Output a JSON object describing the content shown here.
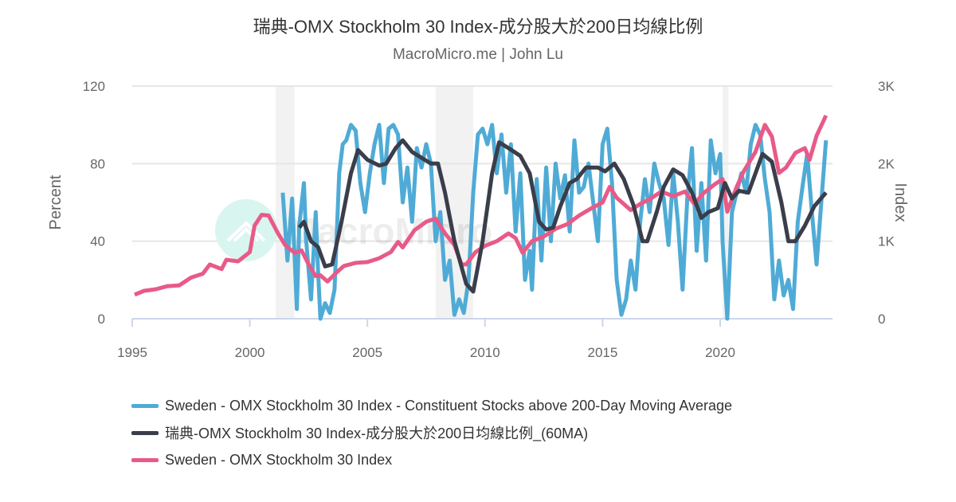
{
  "chart_data": {
    "type": "line",
    "title": "瑞典-OMX Stockholm 30 Index-成分股大於200日均線比例",
    "subtitle": "MacroMicro.me | John Lu",
    "watermark": "MacroMicro",
    "xlim": [
      1995,
      2024.8
    ],
    "x_ticks": [
      "1995",
      "2000",
      "2005",
      "2010",
      "2015",
      "2020"
    ],
    "y_left": {
      "label": "Percent",
      "range": [
        0,
        120
      ],
      "ticks": [
        "0",
        "40",
        "80",
        "120"
      ]
    },
    "y_right": {
      "label": "Index",
      "range": [
        0,
        3000
      ],
      "ticks": [
        "0",
        "1K",
        "2K",
        "3K"
      ]
    },
    "grid": true,
    "legend_placement": "bottom",
    "recession_bands": [
      [
        2001.1,
        2001.9
      ],
      [
        2007.9,
        2009.5
      ],
      [
        2020.1,
        2020.35
      ]
    ],
    "series": [
      {
        "name": "Sweden - OMX Stockholm 30 Index - Constituent Stocks above 200-Day Moving Average",
        "axis": "left",
        "color": "#4fabd6",
        "points": [
          [
            2001.4,
            65
          ],
          [
            2001.6,
            30
          ],
          [
            2001.8,
            62
          ],
          [
            2002.0,
            5
          ],
          [
            2002.1,
            48
          ],
          [
            2002.3,
            70
          ],
          [
            2002.4,
            40
          ],
          [
            2002.6,
            10
          ],
          [
            2002.8,
            55
          ],
          [
            2002.9,
            25
          ],
          [
            2003.0,
            0
          ],
          [
            2003.2,
            8
          ],
          [
            2003.4,
            3
          ],
          [
            2003.6,
            15
          ],
          [
            2003.8,
            75
          ],
          [
            2003.95,
            90
          ],
          [
            2004.1,
            92
          ],
          [
            2004.3,
            100
          ],
          [
            2004.5,
            97
          ],
          [
            2004.7,
            70
          ],
          [
            2004.9,
            55
          ],
          [
            2005.1,
            75
          ],
          [
            2005.3,
            90
          ],
          [
            2005.5,
            100
          ],
          [
            2005.7,
            70
          ],
          [
            2005.9,
            98
          ],
          [
            2006.1,
            100
          ],
          [
            2006.3,
            95
          ],
          [
            2006.5,
            60
          ],
          [
            2006.7,
            78
          ],
          [
            2006.9,
            50
          ],
          [
            2007.1,
            88
          ],
          [
            2007.3,
            78
          ],
          [
            2007.5,
            90
          ],
          [
            2007.7,
            80
          ],
          [
            2007.9,
            40
          ],
          [
            2008.1,
            55
          ],
          [
            2008.3,
            20
          ],
          [
            2008.5,
            30
          ],
          [
            2008.7,
            2
          ],
          [
            2008.9,
            10
          ],
          [
            2009.1,
            3
          ],
          [
            2009.3,
            20
          ],
          [
            2009.5,
            65
          ],
          [
            2009.7,
            95
          ],
          [
            2009.9,
            98
          ],
          [
            2010.1,
            90
          ],
          [
            2010.3,
            100
          ],
          [
            2010.5,
            75
          ],
          [
            2010.7,
            95
          ],
          [
            2010.9,
            65
          ],
          [
            2011.1,
            90
          ],
          [
            2011.3,
            45
          ],
          [
            2011.5,
            75
          ],
          [
            2011.7,
            20
          ],
          [
            2011.9,
            35
          ],
          [
            2012.0,
            15
          ],
          [
            2012.2,
            72
          ],
          [
            2012.4,
            30
          ],
          [
            2012.6,
            78
          ],
          [
            2012.8,
            40
          ],
          [
            2013.0,
            80
          ],
          [
            2013.2,
            62
          ],
          [
            2013.4,
            74
          ],
          [
            2013.6,
            45
          ],
          [
            2013.8,
            92
          ],
          [
            2014.0,
            65
          ],
          [
            2014.2,
            68
          ],
          [
            2014.4,
            80
          ],
          [
            2014.6,
            60
          ],
          [
            2014.8,
            40
          ],
          [
            2015.0,
            90
          ],
          [
            2015.2,
            98
          ],
          [
            2015.4,
            70
          ],
          [
            2015.6,
            20
          ],
          [
            2015.8,
            2
          ],
          [
            2016.0,
            10
          ],
          [
            2016.2,
            30
          ],
          [
            2016.4,
            15
          ],
          [
            2016.6,
            50
          ],
          [
            2016.8,
            72
          ],
          [
            2017.0,
            55
          ],
          [
            2017.2,
            80
          ],
          [
            2017.4,
            70
          ],
          [
            2017.6,
            62
          ],
          [
            2017.8,
            38
          ],
          [
            2018.0,
            75
          ],
          [
            2018.2,
            50
          ],
          [
            2018.4,
            15
          ],
          [
            2018.6,
            62
          ],
          [
            2018.8,
            88
          ],
          [
            2019.0,
            35
          ],
          [
            2019.2,
            70
          ],
          [
            2019.4,
            30
          ],
          [
            2019.6,
            92
          ],
          [
            2019.8,
            75
          ],
          [
            2020.0,
            85
          ],
          [
            2020.1,
            40
          ],
          [
            2020.3,
            0
          ],
          [
            2020.5,
            55
          ],
          [
            2020.7,
            65
          ],
          [
            2020.9,
            75
          ],
          [
            2021.1,
            65
          ],
          [
            2021.3,
            90
          ],
          [
            2021.5,
            100
          ],
          [
            2021.7,
            95
          ],
          [
            2021.9,
            72
          ],
          [
            2022.1,
            55
          ],
          [
            2022.3,
            10
          ],
          [
            2022.5,
            30
          ],
          [
            2022.7,
            12
          ],
          [
            2022.9,
            20
          ],
          [
            2023.1,
            5
          ],
          [
            2023.3,
            50
          ],
          [
            2023.5,
            68
          ],
          [
            2023.7,
            85
          ],
          [
            2023.9,
            55
          ],
          [
            2024.1,
            28
          ],
          [
            2024.3,
            60
          ],
          [
            2024.5,
            92
          ]
        ]
      },
      {
        "name": "瑞典-OMX Stockholm 30 Index-成分股大於200日均線比例_(60MA)",
        "axis": "left",
        "color": "#3a3d4a",
        "points": [
          [
            2002.1,
            47
          ],
          [
            2002.3,
            50
          ],
          [
            2002.6,
            40
          ],
          [
            2002.9,
            37
          ],
          [
            2003.2,
            27
          ],
          [
            2003.5,
            28
          ],
          [
            2003.9,
            50
          ],
          [
            2004.3,
            75
          ],
          [
            2004.6,
            87
          ],
          [
            2005.0,
            82
          ],
          [
            2005.5,
            79
          ],
          [
            2005.8,
            80
          ],
          [
            2006.2,
            88
          ],
          [
            2006.5,
            92
          ],
          [
            2006.9,
            86
          ],
          [
            2007.3,
            83
          ],
          [
            2007.7,
            80
          ],
          [
            2008.0,
            80
          ],
          [
            2008.3,
            65
          ],
          [
            2008.7,
            40
          ],
          [
            2009.2,
            18
          ],
          [
            2009.5,
            14
          ],
          [
            2009.9,
            40
          ],
          [
            2010.3,
            75
          ],
          [
            2010.6,
            91
          ],
          [
            2011.0,
            88
          ],
          [
            2011.5,
            84
          ],
          [
            2011.9,
            75
          ],
          [
            2012.3,
            50
          ],
          [
            2012.6,
            46
          ],
          [
            2012.9,
            47
          ],
          [
            2013.2,
            58
          ],
          [
            2013.6,
            70
          ],
          [
            2013.9,
            72
          ],
          [
            2014.3,
            78
          ],
          [
            2014.8,
            78
          ],
          [
            2015.1,
            76
          ],
          [
            2015.5,
            80
          ],
          [
            2015.9,
            72
          ],
          [
            2016.3,
            59
          ],
          [
            2016.7,
            40
          ],
          [
            2016.9,
            40
          ],
          [
            2017.3,
            55
          ],
          [
            2017.6,
            68
          ],
          [
            2018.0,
            77
          ],
          [
            2018.4,
            74
          ],
          [
            2018.8,
            65
          ],
          [
            2019.2,
            52
          ],
          [
            2019.5,
            55
          ],
          [
            2019.9,
            57
          ],
          [
            2020.2,
            70
          ],
          [
            2020.5,
            62
          ],
          [
            2020.8,
            66
          ],
          [
            2021.2,
            65
          ],
          [
            2021.5,
            75
          ],
          [
            2021.8,
            85
          ],
          [
            2022.2,
            81
          ],
          [
            2022.6,
            60
          ],
          [
            2022.9,
            40
          ],
          [
            2023.2,
            40
          ],
          [
            2023.6,
            48
          ],
          [
            2024.0,
            58
          ],
          [
            2024.5,
            65
          ]
        ]
      },
      {
        "name": "Sweden - OMX Stockholm 30 Index",
        "axis": "right",
        "color": "#e85a87",
        "points": [
          [
            1995.1,
            310
          ],
          [
            1995.5,
            360
          ],
          [
            1996.0,
            380
          ],
          [
            1996.5,
            420
          ],
          [
            1997.0,
            430
          ],
          [
            1997.5,
            530
          ],
          [
            1998.0,
            580
          ],
          [
            1998.3,
            700
          ],
          [
            1998.8,
            640
          ],
          [
            1999.0,
            760
          ],
          [
            1999.5,
            740
          ],
          [
            2000.0,
            860
          ],
          [
            2000.2,
            1200
          ],
          [
            2000.5,
            1340
          ],
          [
            2000.8,
            1330
          ],
          [
            2001.2,
            1100
          ],
          [
            2001.5,
            950
          ],
          [
            2001.9,
            850
          ],
          [
            2002.2,
            880
          ],
          [
            2002.5,
            700
          ],
          [
            2002.8,
            550
          ],
          [
            2003.0,
            560
          ],
          [
            2003.3,
            480
          ],
          [
            2003.7,
            600
          ],
          [
            2004.0,
            680
          ],
          [
            2004.5,
            720
          ],
          [
            2005.0,
            730
          ],
          [
            2005.5,
            780
          ],
          [
            2006.0,
            860
          ],
          [
            2006.3,
            990
          ],
          [
            2006.5,
            920
          ],
          [
            2007.0,
            1140
          ],
          [
            2007.5,
            1250
          ],
          [
            2007.9,
            1290
          ],
          [
            2008.3,
            1100
          ],
          [
            2008.7,
            950
          ],
          [
            2009.0,
            700
          ],
          [
            2009.2,
            700
          ],
          [
            2009.6,
            860
          ],
          [
            2010.0,
            940
          ],
          [
            2010.5,
            1000
          ],
          [
            2011.0,
            1100
          ],
          [
            2011.3,
            1040
          ],
          [
            2011.6,
            850
          ],
          [
            2012.0,
            1000
          ],
          [
            2012.5,
            1060
          ],
          [
            2013.0,
            1160
          ],
          [
            2013.5,
            1220
          ],
          [
            2014.0,
            1330
          ],
          [
            2014.5,
            1420
          ],
          [
            2015.0,
            1500
          ],
          [
            2015.3,
            1700
          ],
          [
            2015.6,
            1560
          ],
          [
            2016.2,
            1400
          ],
          [
            2016.6,
            1480
          ],
          [
            2017.0,
            1540
          ],
          [
            2017.5,
            1640
          ],
          [
            2018.0,
            1580
          ],
          [
            2018.5,
            1640
          ],
          [
            2018.9,
            1480
          ],
          [
            2019.3,
            1620
          ],
          [
            2019.8,
            1740
          ],
          [
            2020.1,
            1800
          ],
          [
            2020.3,
            1380
          ],
          [
            2020.7,
            1700
          ],
          [
            2021.0,
            1900
          ],
          [
            2021.5,
            2150
          ],
          [
            2021.9,
            2500
          ],
          [
            2022.2,
            2350
          ],
          [
            2022.5,
            1880
          ],
          [
            2022.8,
            1950
          ],
          [
            2023.2,
            2140
          ],
          [
            2023.6,
            2200
          ],
          [
            2023.8,
            2050
          ],
          [
            2024.1,
            2360
          ],
          [
            2024.5,
            2620
          ]
        ]
      }
    ]
  }
}
